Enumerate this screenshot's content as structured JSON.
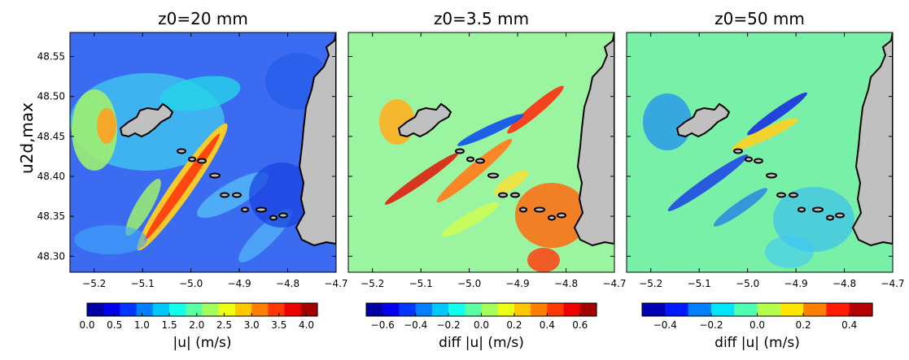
{
  "figure": {
    "ylabel": "u2d,max",
    "x_ticks": [
      "−5.2",
      "−5.1",
      "−5.0",
      "−4.9",
      "−4.8",
      "−4.7"
    ],
    "y_ticks": [
      "48.30",
      "48.35",
      "48.40",
      "48.45",
      "48.50",
      "48.55"
    ]
  },
  "chart_data": [
    {
      "type": "heatmap",
      "title": "z0=20 mm",
      "ylabel": "u2d,max",
      "xlim": [
        -5.25,
        -4.7
      ],
      "ylim": [
        48.28,
        48.58
      ],
      "x_ticks": [
        -5.2,
        -5.1,
        -5.0,
        -4.9,
        -4.8,
        -4.7
      ],
      "y_ticks": [
        48.3,
        48.35,
        48.4,
        48.45,
        48.5,
        48.55
      ],
      "colorbar": {
        "label": "|u| (m/s)",
        "range": [
          0.0,
          4.2
        ],
        "ticks": [
          "0.0",
          "0.5",
          "1.0",
          "1.5",
          "2.0",
          "2.5",
          "3.0",
          "3.5",
          "4.0"
        ],
        "tick_values": [
          0.0,
          0.5,
          1.0,
          1.5,
          2.0,
          2.5,
          3.0,
          3.5,
          4.0
        ],
        "levels": 14,
        "colormap": "jet"
      },
      "background": "#3a6bf0"
    },
    {
      "type": "heatmap",
      "title": "z0=3.5 mm",
      "xlim": [
        -5.25,
        -4.7
      ],
      "ylim": [
        48.28,
        48.58
      ],
      "x_ticks": [
        -5.2,
        -5.1,
        -5.0,
        -4.9,
        -4.8,
        -4.7
      ],
      "colorbar": {
        "label": "diff |u| (m/s)",
        "range": [
          -0.7,
          0.7
        ],
        "ticks": [
          "−0.6",
          "−0.4",
          "−0.2",
          "0.0",
          "0.2",
          "0.4",
          "0.6"
        ],
        "tick_values": [
          -0.6,
          -0.4,
          -0.2,
          0.0,
          0.2,
          0.4,
          0.6
        ],
        "levels": 14,
        "colormap": "jet"
      },
      "background": "#9bf5a0"
    },
    {
      "type": "heatmap",
      "title": "z0=50 mm",
      "xlim": [
        -5.25,
        -4.7
      ],
      "ylim": [
        48.28,
        48.58
      ],
      "x_ticks": [
        -5.2,
        -5.1,
        -5.0,
        -4.9,
        -4.8,
        -4.7
      ],
      "colorbar": {
        "label": "diff |u| (m/s)",
        "range": [
          -0.5,
          0.5
        ],
        "ticks": [
          "−0.4",
          "−0.2",
          "0.0",
          "0.2",
          "0.4"
        ],
        "tick_values": [
          -0.4,
          -0.2,
          0.0,
          0.2,
          0.4
        ],
        "levels": 10,
        "colormap": "jet"
      },
      "background": "#78f0a8"
    }
  ],
  "land_color": "#c0c0c0"
}
